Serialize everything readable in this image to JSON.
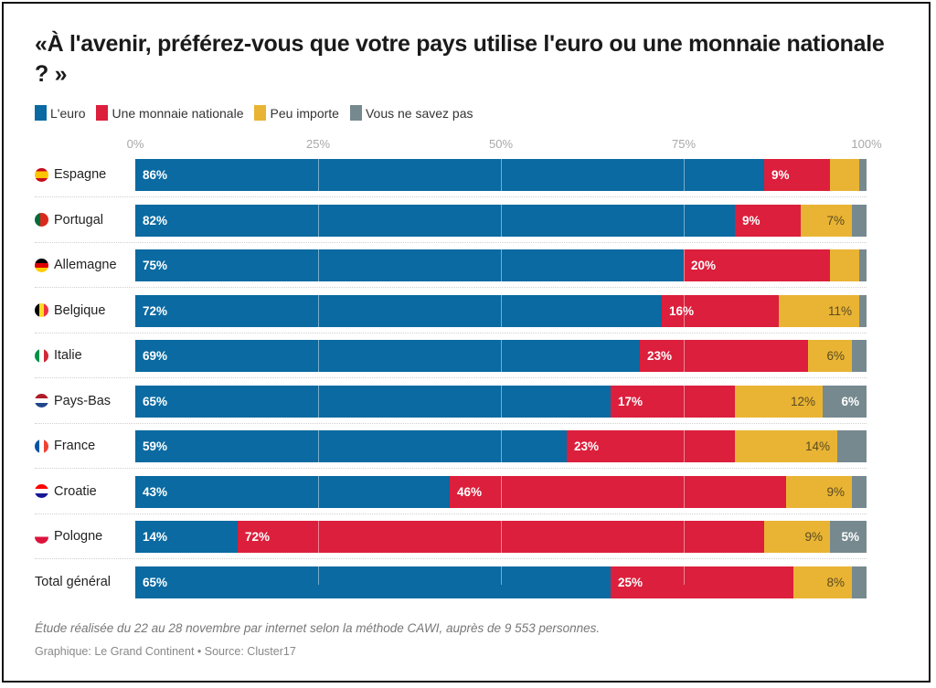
{
  "title": "«À l'avenir, préférez-vous que votre pays utilise l'euro ou une monnaie nationale ? »",
  "colors": {
    "euro": "#0a6aa1",
    "national": "#dc1f3c",
    "indifferent": "#e9b434",
    "dontknow": "#76898f"
  },
  "note": "Étude réalisée du 22 au 28 novembre par internet selon la méthode CAWI, auprès de 9 553 personnes.",
  "source": "Graphique: Le Grand Continent  • Source: Cluster17",
  "chart_data": {
    "type": "bar",
    "orientation": "horizontal",
    "stacked": true,
    "title": "«À l'avenir, préférez-vous que votre pays utilise l'euro ou une monnaie nationale ? »",
    "xlabel": "",
    "ylabel": "",
    "xlim": [
      0,
      100
    ],
    "x_ticks": [
      "0%",
      "25%",
      "50%",
      "75%",
      "100%"
    ],
    "grid": true,
    "legend_position": "top-left",
    "categories": [
      "Espagne",
      "Portugal",
      "Allemagne",
      "Belgique",
      "Italie",
      "Pays-Bas",
      "France",
      "Croatie",
      "Pologne",
      "Total général"
    ],
    "flags": [
      "es",
      "pt",
      "de",
      "be",
      "it",
      "nl",
      "fr",
      "hr",
      "pl",
      ""
    ],
    "series": [
      {
        "key": "euro",
        "name": "L'euro",
        "values": [
          86,
          82,
          75,
          72,
          69,
          65,
          59,
          43,
          14,
          65
        ],
        "labels": [
          "86%",
          "82%",
          "75%",
          "72%",
          "69%",
          "65%",
          "59%",
          "43%",
          "14%",
          "65%"
        ]
      },
      {
        "key": "national",
        "name": "Une monnaie nationale",
        "values": [
          9,
          9,
          20,
          16,
          23,
          17,
          23,
          46,
          72,
          25
        ],
        "labels": [
          "9%",
          "9%",
          "20%",
          "16%",
          "23%",
          "17%",
          "23%",
          "46%",
          "72%",
          "25%"
        ]
      },
      {
        "key": "indifferent",
        "name": "Peu importe",
        "values": [
          4,
          7,
          4,
          11,
          6,
          12,
          14,
          9,
          9,
          8
        ],
        "labels": [
          "",
          "7%",
          "",
          "11%",
          "6%",
          "12%",
          "14%",
          "9%",
          "9%",
          "8%"
        ]
      },
      {
        "key": "dontknow",
        "name": "Vous ne savez pas",
        "values": [
          1,
          2,
          1,
          1,
          2,
          6,
          4,
          2,
          5,
          2
        ],
        "labels": [
          "",
          "",
          "",
          "",
          "",
          "6%",
          "",
          "",
          "5%",
          ""
        ]
      }
    ]
  }
}
